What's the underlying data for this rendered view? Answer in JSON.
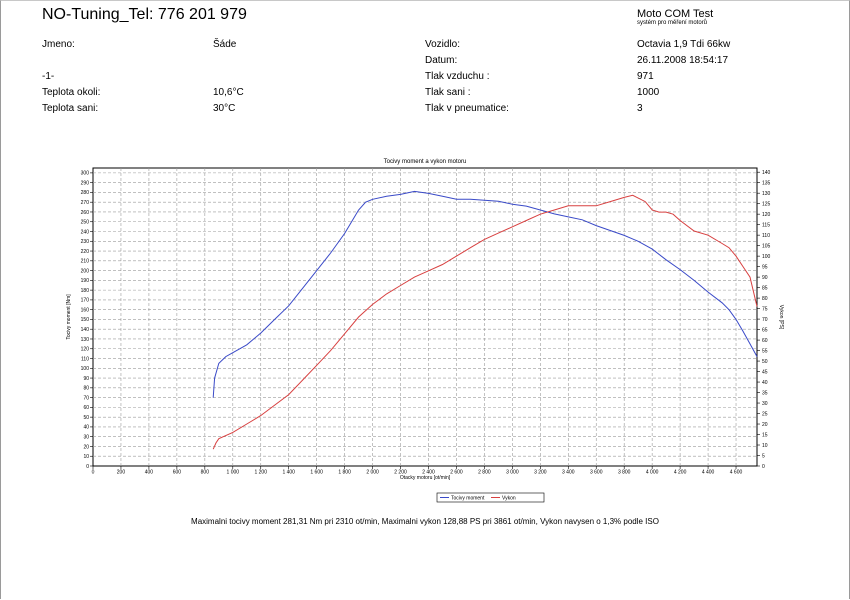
{
  "header": {
    "title": "NO-Tuning_Tel: 776 201 979",
    "brand": "Moto COM Test",
    "brand_sub": "systém pro měření motorů"
  },
  "info_left": [
    {
      "label": "Jmeno:",
      "value": "Šáde"
    },
    {
      "label": "-1-",
      "value": ""
    },
    {
      "label": "Teplota okoli:",
      "value": "10,6°C"
    },
    {
      "label": "Teplota sani:",
      "value": "30°C"
    }
  ],
  "info_right": [
    {
      "label": "Vozidlo:",
      "value": "Octavia 1,9 Tdi 66kw"
    },
    {
      "label": "Datum:",
      "value": "26.11.2008 18:54:17"
    },
    {
      "label": "Tlak vzduchu :",
      "value": "971"
    },
    {
      "label": "Tlak sani :",
      "value": "1000"
    },
    {
      "label": "Tlak v pneumatice:",
      "value": "3"
    }
  ],
  "footer": "Maximalni tocivy moment 281,31 Nm pri 2310 ot/min,  Maximalni vykon 128,88 PS pri 3861 ot/min,  Vykon navysen o 1,3% podle ISO",
  "chart_data": {
    "type": "line",
    "title": "Tocivy moment a vykon motoru",
    "xlabel": "Otacky motoru [ot/min]",
    "ylabel_left": "Tocivy moment [Nm]",
    "ylabel_right": "Vykon [PS]",
    "xlim": [
      0,
      4750
    ],
    "ylim_left": [
      0,
      305
    ],
    "ylim_right": [
      0,
      142
    ],
    "x_ticks": [
      0,
      200,
      400,
      600,
      800,
      1000,
      1200,
      1400,
      1600,
      1800,
      2000,
      2200,
      2400,
      2600,
      2800,
      3000,
      3200,
      3400,
      3600,
      3800,
      4000,
      4200,
      4400,
      4600
    ],
    "x_tick_labels": [
      "0",
      "200",
      "400",
      "600",
      "800",
      "1 000",
      "1 200",
      "1 400",
      "1 600",
      "1 800",
      "2 000",
      "2 200",
      "2 400",
      "2 600",
      "2 800",
      "3 000",
      "3 200",
      "3 400",
      "3 600",
      "3 800",
      "4 000",
      "4 200",
      "4 400",
      "4 600"
    ],
    "left_ticks": [
      0,
      10,
      20,
      30,
      40,
      50,
      60,
      70,
      80,
      90,
      100,
      110,
      120,
      130,
      140,
      150,
      160,
      170,
      180,
      190,
      200,
      210,
      220,
      230,
      240,
      250,
      260,
      270,
      280,
      290,
      300
    ],
    "right_ticks": [
      0,
      5,
      10,
      15,
      20,
      25,
      30,
      35,
      40,
      45,
      50,
      55,
      60,
      65,
      70,
      75,
      80,
      85,
      90,
      95,
      100,
      105,
      110,
      115,
      120,
      125,
      130,
      135,
      140
    ],
    "grid": true,
    "legend_position": "bottom-right",
    "series": [
      {
        "name": "Tocivy moment",
        "axis": "left",
        "color": "#3a4ac8",
        "points": [
          [
            860,
            70
          ],
          [
            870,
            90
          ],
          [
            900,
            105
          ],
          [
            950,
            112
          ],
          [
            1000,
            116
          ],
          [
            1100,
            124
          ],
          [
            1200,
            136
          ],
          [
            1300,
            150
          ],
          [
            1400,
            164
          ],
          [
            1500,
            182
          ],
          [
            1600,
            200
          ],
          [
            1700,
            218
          ],
          [
            1800,
            238
          ],
          [
            1850,
            250
          ],
          [
            1900,
            262
          ],
          [
            1950,
            270
          ],
          [
            2000,
            273
          ],
          [
            2100,
            276
          ],
          [
            2200,
            278
          ],
          [
            2300,
            281
          ],
          [
            2400,
            279
          ],
          [
            2500,
            276
          ],
          [
            2600,
            273
          ],
          [
            2700,
            273
          ],
          [
            2800,
            272
          ],
          [
            2900,
            271
          ],
          [
            3000,
            268
          ],
          [
            3100,
            266
          ],
          [
            3200,
            262
          ],
          [
            3300,
            258
          ],
          [
            3400,
            255
          ],
          [
            3500,
            252
          ],
          [
            3600,
            246
          ],
          [
            3700,
            241
          ],
          [
            3800,
            236
          ],
          [
            3900,
            230
          ],
          [
            4000,
            222
          ],
          [
            4100,
            211
          ],
          [
            4200,
            201
          ],
          [
            4300,
            190
          ],
          [
            4400,
            178
          ],
          [
            4500,
            167
          ],
          [
            4550,
            160
          ],
          [
            4600,
            150
          ],
          [
            4650,
            138
          ],
          [
            4700,
            125
          ],
          [
            4750,
            112
          ]
        ]
      },
      {
        "name": "Vykon",
        "axis": "right",
        "color": "#d84040",
        "points": [
          [
            860,
            8
          ],
          [
            880,
            11
          ],
          [
            900,
            13
          ],
          [
            1000,
            16
          ],
          [
            1100,
            20
          ],
          [
            1200,
            24
          ],
          [
            1300,
            29
          ],
          [
            1400,
            34
          ],
          [
            1500,
            41
          ],
          [
            1600,
            48
          ],
          [
            1700,
            55
          ],
          [
            1800,
            63
          ],
          [
            1900,
            71
          ],
          [
            2000,
            77
          ],
          [
            2100,
            82
          ],
          [
            2200,
            86
          ],
          [
            2300,
            90
          ],
          [
            2400,
            93
          ],
          [
            2500,
            96
          ],
          [
            2600,
            100
          ],
          [
            2700,
            104
          ],
          [
            2800,
            108
          ],
          [
            2900,
            111
          ],
          [
            3000,
            114
          ],
          [
            3100,
            117
          ],
          [
            3200,
            120
          ],
          [
            3300,
            122
          ],
          [
            3400,
            124
          ],
          [
            3500,
            124
          ],
          [
            3600,
            124
          ],
          [
            3700,
            126
          ],
          [
            3800,
            128
          ],
          [
            3861,
            129
          ],
          [
            3950,
            126
          ],
          [
            4000,
            122
          ],
          [
            4050,
            121
          ],
          [
            4100,
            121
          ],
          [
            4150,
            120
          ],
          [
            4200,
            117
          ],
          [
            4300,
            112
          ],
          [
            4400,
            110
          ],
          [
            4500,
            106
          ],
          [
            4550,
            104
          ],
          [
            4600,
            100
          ],
          [
            4650,
            95
          ],
          [
            4700,
            90
          ],
          [
            4750,
            76
          ]
        ]
      }
    ]
  }
}
